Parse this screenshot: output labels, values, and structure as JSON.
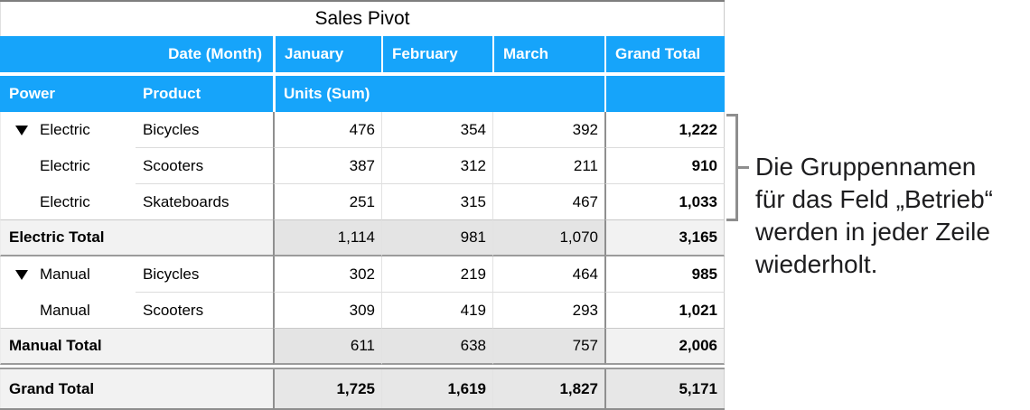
{
  "title": "Sales Pivot",
  "header": {
    "date_field": "Date (Month)",
    "months": [
      "January",
      "February",
      "March"
    ],
    "grand_total": "Grand Total",
    "power_field": "Power",
    "product_field": "Product",
    "values_field": "Units (Sum)"
  },
  "rows": [
    {
      "group": "Electric",
      "product": "Bicycles",
      "jan": "476",
      "feb": "354",
      "mar": "392",
      "total": "1,222"
    },
    {
      "group": "Electric",
      "product": "Scooters",
      "jan": "387",
      "feb": "312",
      "mar": "211",
      "total": "910"
    },
    {
      "group": "Electric",
      "product": "Skateboards",
      "jan": "251",
      "feb": "315",
      "mar": "467",
      "total": "1,033"
    },
    {
      "label": "Electric Total",
      "jan": "1,114",
      "feb": "981",
      "mar": "1,070",
      "total": "3,165"
    },
    {
      "group": "Manual",
      "product": "Bicycles",
      "jan": "302",
      "feb": "219",
      "mar": "464",
      "total": "985"
    },
    {
      "group": "Manual",
      "product": "Scooters",
      "jan": "309",
      "feb": "419",
      "mar": "293",
      "total": "1,021"
    },
    {
      "label": "Manual Total",
      "jan": "611",
      "feb": "638",
      "mar": "757",
      "total": "2,006"
    },
    {
      "label": "Grand Total",
      "jan": "1,725",
      "feb": "1,619",
      "mar": "1,827",
      "total": "5,171"
    }
  ],
  "annotation": {
    "lines": [
      "Die Gruppennamen",
      "für das Feld „Betrieb“",
      "werden in jeder Zeile",
      "wiederholt."
    ]
  },
  "icons": {
    "disclosure_triangle": "triangle-down"
  },
  "colors": {
    "header_blue": "#16a4fa",
    "subtotal_gray": "#e4e4e4",
    "total_label_gray": "#f2f2f2",
    "bracket_gray": "#8e8e8e"
  }
}
